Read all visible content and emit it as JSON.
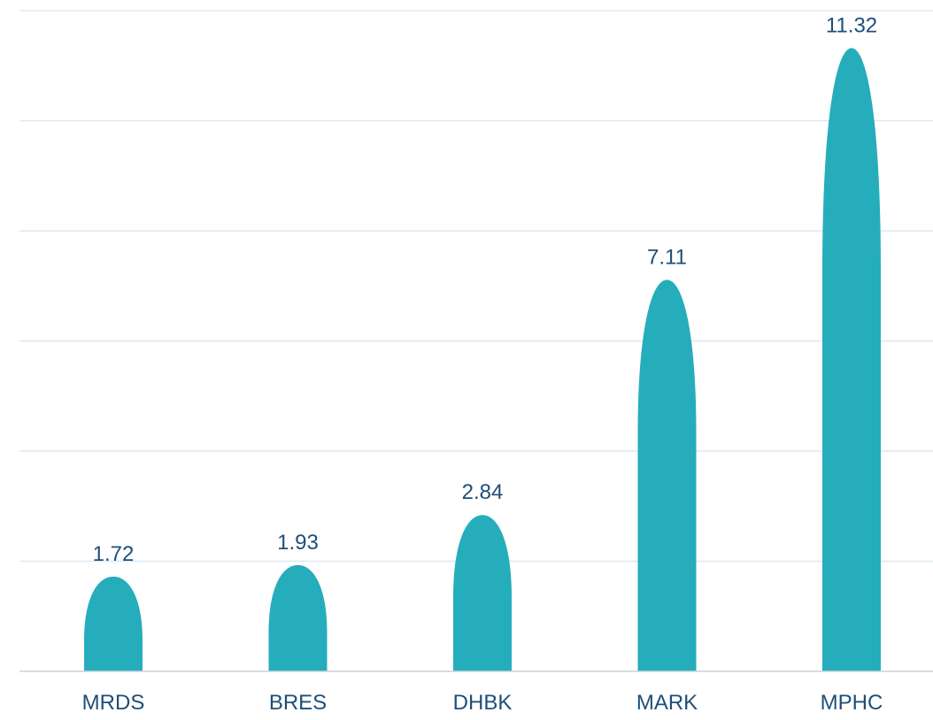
{
  "chart_data": {
    "type": "bar",
    "categories": [
      "MRDS",
      "BRES",
      "DHBK",
      "MARK",
      "MPHC"
    ],
    "values": [
      1.72,
      1.93,
      2.84,
      7.11,
      11.32
    ],
    "ylim": [
      0,
      12
    ],
    "grid": true,
    "legend": "none",
    "bar_color": "#26adbb",
    "grid_color": "#dce8f3",
    "axis_color": "#c9d3dc",
    "label_color": "#1f4e79"
  }
}
